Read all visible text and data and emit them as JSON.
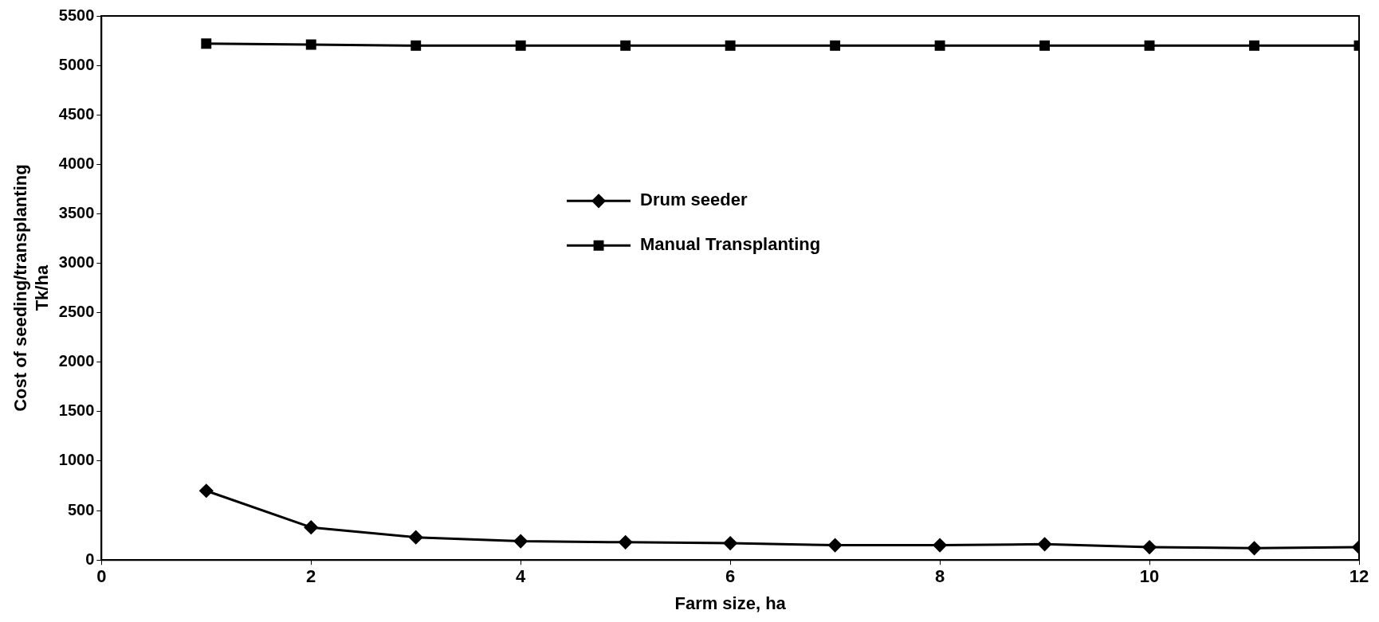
{
  "chart_data": {
    "type": "line",
    "xlabel": "Farm size, ha",
    "ylabel": "Cost of seeding/transplanting\nTk/ha",
    "x": [
      1,
      2,
      3,
      4,
      5,
      6,
      7,
      8,
      9,
      10,
      11,
      12
    ],
    "series": [
      {
        "name": "Drum seeder",
        "color": "#000000",
        "marker": "diamond",
        "values": [
          700,
          330,
          230,
          190,
          180,
          170,
          150,
          150,
          160,
          130,
          120,
          130
        ]
      },
      {
        "name": "Manual Transplanting",
        "color": "#000000",
        "marker": "square",
        "values": [
          5220,
          5210,
          5200,
          5200,
          5200,
          5200,
          5200,
          5200,
          5200,
          5200,
          5200,
          5200
        ]
      }
    ],
    "xlim": [
      0,
      12
    ],
    "xticks": [
      0,
      2,
      4,
      6,
      8,
      10,
      12
    ],
    "ylim": [
      0,
      5500
    ],
    "yticks": [
      0,
      500,
      1000,
      1500,
      2000,
      2500,
      3000,
      3500,
      4000,
      4500,
      5000,
      5500
    ],
    "grid": false,
    "legend": "center",
    "line_style": "solid"
  }
}
